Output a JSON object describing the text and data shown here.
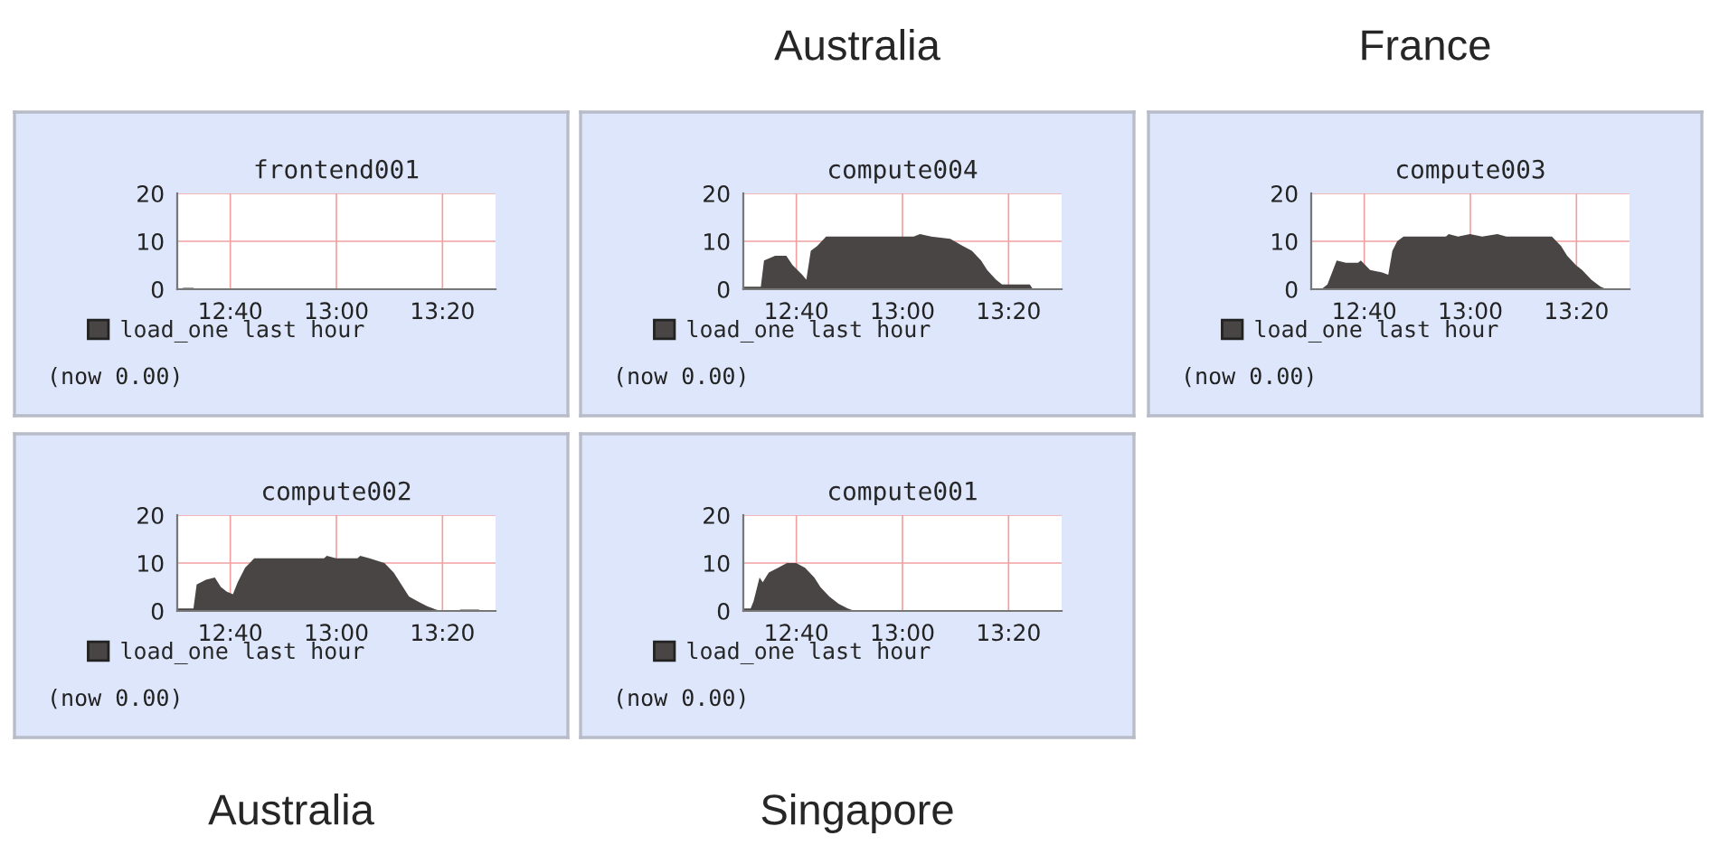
{
  "chart_data": [
    {
      "type": "area",
      "title": "frontend001",
      "x": [
        12.5,
        12.52,
        12.55,
        12.56,
        13.5
      ],
      "series": [
        {
          "name": "load_one last hour",
          "color": "#4a4545",
          "values": [
            0,
            0.3,
            0.3,
            0,
            0
          ]
        }
      ],
      "xlim": [
        12.5,
        13.5
      ],
      "xticks": [
        {
          "value": 12.6667,
          "label": "12:40"
        },
        {
          "value": 13.0,
          "label": "13:00"
        },
        {
          "value": 13.3333,
          "label": "13:20"
        }
      ],
      "ylim": [
        0,
        20
      ],
      "yticks": [
        0,
        10,
        20
      ],
      "grid": true,
      "legend": "bottom",
      "annotations": [
        "(now 0.00)"
      ]
    },
    {
      "type": "area",
      "title": "compute004",
      "x": [
        12.5,
        12.555,
        12.565,
        12.6,
        12.635,
        12.655,
        12.685,
        12.698,
        12.712,
        12.732,
        12.76,
        12.9,
        13.035,
        13.055,
        13.09,
        13.15,
        13.19,
        13.218,
        13.247,
        13.266,
        13.294,
        13.313,
        13.4,
        13.41,
        13.5
      ],
      "series": [
        {
          "name": "load_one last hour",
          "color": "#4a4545",
          "values": [
            0.5,
            0.5,
            6,
            7,
            7,
            5,
            3,
            2,
            8,
            9,
            11,
            11,
            11,
            11.5,
            11,
            10.5,
            9,
            8,
            6,
            4,
            2,
            1,
            1,
            0,
            0
          ]
        }
      ],
      "xlim": [
        12.5,
        13.5
      ],
      "xticks": [
        {
          "value": 12.6667,
          "label": "12:40"
        },
        {
          "value": 13.0,
          "label": "13:00"
        },
        {
          "value": 13.3333,
          "label": "13:20"
        }
      ],
      "ylim": [
        0,
        20
      ],
      "yticks": [
        0,
        10,
        20
      ],
      "grid": true,
      "legend": "bottom",
      "annotations": [
        "(now 0.00)",
        "Australia"
      ]
    },
    {
      "type": "area",
      "title": "compute003",
      "x": [
        12.5,
        12.532,
        12.551,
        12.58,
        12.609,
        12.647,
        12.656,
        12.685,
        12.723,
        12.742,
        12.755,
        12.77,
        12.79,
        12.923,
        12.932,
        12.961,
        12.999,
        13.037,
        13.085,
        13.113,
        13.256,
        13.285,
        13.304,
        13.332,
        13.351,
        13.38,
        13.409,
        13.428,
        13.5
      ],
      "series": [
        {
          "name": "load_one last hour",
          "color": "#4a4545",
          "values": [
            0,
            0,
            1,
            6,
            5.5,
            5.5,
            6,
            4,
            3.5,
            3,
            8,
            10,
            11,
            11,
            11.5,
            11,
            11.5,
            11,
            11.5,
            11,
            11,
            9,
            7,
            5,
            4,
            2,
            0.5,
            0,
            0
          ]
        }
      ],
      "xlim": [
        12.5,
        13.5
      ],
      "xticks": [
        {
          "value": 12.6667,
          "label": "12:40"
        },
        {
          "value": 13.0,
          "label": "13:00"
        },
        {
          "value": 13.3333,
          "label": "13:20"
        }
      ],
      "ylim": [
        0,
        20
      ],
      "yticks": [
        0,
        10,
        20
      ],
      "grid": true,
      "legend": "bottom",
      "annotations": [
        "(now 0.00)",
        "France"
      ]
    },
    {
      "type": "area",
      "title": "compute002",
      "x": [
        12.5,
        12.551,
        12.561,
        12.59,
        12.618,
        12.637,
        12.656,
        12.675,
        12.69,
        12.713,
        12.742,
        12.961,
        12.97,
        12.999,
        13.066,
        13.075,
        13.104,
        13.151,
        13.18,
        13.209,
        13.228,
        13.256,
        13.285,
        13.313,
        13.332,
        13.38,
        13.39,
        13.447,
        13.456,
        13.5
      ],
      "series": [
        {
          "name": "load_one last hour",
          "color": "#4a4545",
          "values": [
            0.5,
            0.5,
            5.5,
            6.5,
            7,
            5,
            4,
            3.5,
            6,
            9,
            11,
            11,
            11.5,
            11,
            11,
            11.5,
            11,
            10,
            8,
            5,
            3,
            2,
            1,
            0.3,
            0,
            0,
            0.3,
            0.3,
            0,
            0
          ]
        }
      ],
      "xlim": [
        12.5,
        13.5
      ],
      "xticks": [
        {
          "value": 12.6667,
          "label": "12:40"
        },
        {
          "value": 13.0,
          "label": "13:00"
        },
        {
          "value": 13.3333,
          "label": "13:20"
        }
      ],
      "ylim": [
        0,
        20
      ],
      "yticks": [
        0,
        10,
        20
      ],
      "grid": true,
      "legend": "bottom",
      "annotations": [
        "(now 0.00)",
        "Australia"
      ]
    },
    {
      "type": "area",
      "title": "compute001",
      "x": [
        12.5,
        12.523,
        12.532,
        12.551,
        12.561,
        12.58,
        12.609,
        12.637,
        12.666,
        12.694,
        12.723,
        12.742,
        12.77,
        12.799,
        12.828,
        12.85,
        13.5
      ],
      "series": [
        {
          "name": "load_one last hour",
          "color": "#4a4545",
          "values": [
            0.5,
            0.5,
            2,
            7,
            6,
            8,
            9,
            10,
            10,
            9,
            7,
            5,
            3,
            1.5,
            0.5,
            0,
            0
          ]
        }
      ],
      "xlim": [
        12.5,
        13.5
      ],
      "xticks": [
        {
          "value": 12.6667,
          "label": "12:40"
        },
        {
          "value": 13.0,
          "label": "13:00"
        },
        {
          "value": 13.3333,
          "label": "13:20"
        }
      ],
      "ylim": [
        0,
        20
      ],
      "yticks": [
        0,
        10,
        20
      ],
      "grid": true,
      "legend": "bottom",
      "annotations": [
        "(now 0.00)",
        "Singapore"
      ]
    }
  ]
}
